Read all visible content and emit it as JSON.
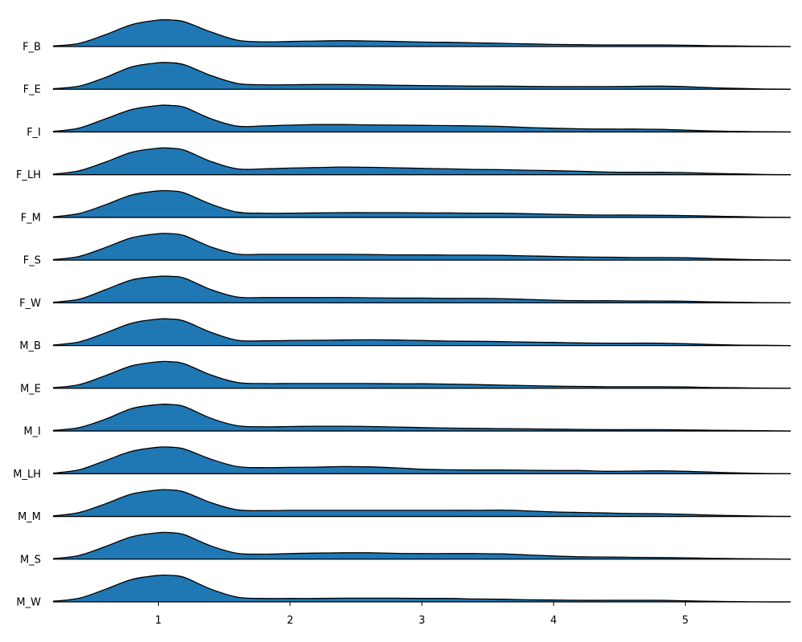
{
  "chart_data": {
    "type": "area",
    "title": "",
    "xlabel": "",
    "ylabel": "",
    "xlim": [
      0.2,
      5.8
    ],
    "xticks": [
      "1",
      "2",
      "3",
      "4",
      "5"
    ],
    "xtick_values": [
      1,
      2,
      3,
      4,
      5
    ],
    "grid": false,
    "legend": "none",
    "fill_color": "#1f77b4",
    "line_color": "#000000",
    "x": [
      0.2,
      0.4,
      0.6,
      0.8,
      1.0,
      1.1,
      1.2,
      1.4,
      1.6,
      1.8,
      2.0,
      2.2,
      2.4,
      2.6,
      2.8,
      3.0,
      3.2,
      3.4,
      3.6,
      3.8,
      4.0,
      4.2,
      4.4,
      4.6,
      4.8,
      5.0,
      5.2,
      5.4,
      5.6,
      5.8
    ],
    "series": [
      {
        "name": "F_B",
        "values": [
          0.02,
          0.12,
          0.45,
          0.83,
          1.0,
          1.0,
          0.93,
          0.55,
          0.24,
          0.18,
          0.19,
          0.21,
          0.22,
          0.21,
          0.19,
          0.17,
          0.16,
          0.14,
          0.12,
          0.1,
          0.08,
          0.07,
          0.06,
          0.06,
          0.06,
          0.05,
          0.03,
          0.02,
          0.01,
          0.0
        ]
      },
      {
        "name": "F_E",
        "values": [
          0.02,
          0.12,
          0.45,
          0.85,
          1.0,
          1.0,
          0.92,
          0.52,
          0.22,
          0.17,
          0.17,
          0.18,
          0.18,
          0.17,
          0.15,
          0.14,
          0.13,
          0.12,
          0.12,
          0.11,
          0.1,
          0.1,
          0.1,
          0.11,
          0.12,
          0.1,
          0.06,
          0.03,
          0.01,
          0.0
        ]
      },
      {
        "name": "F_I",
        "values": [
          0.02,
          0.15,
          0.5,
          0.85,
          1.0,
          1.0,
          0.93,
          0.5,
          0.22,
          0.23,
          0.26,
          0.28,
          0.28,
          0.27,
          0.26,
          0.25,
          0.24,
          0.23,
          0.21,
          0.17,
          0.14,
          0.12,
          0.11,
          0.11,
          0.1,
          0.07,
          0.04,
          0.02,
          0.01,
          0.0
        ]
      },
      {
        "name": "F_LH",
        "values": [
          0.02,
          0.15,
          0.48,
          0.85,
          1.0,
          1.0,
          0.92,
          0.5,
          0.22,
          0.22,
          0.25,
          0.27,
          0.29,
          0.28,
          0.26,
          0.24,
          0.22,
          0.2,
          0.19,
          0.17,
          0.15,
          0.13,
          0.1,
          0.09,
          0.09,
          0.08,
          0.05,
          0.03,
          0.01,
          0.0
        ]
      },
      {
        "name": "F_M",
        "values": [
          0.02,
          0.15,
          0.48,
          0.85,
          1.0,
          1.0,
          0.92,
          0.5,
          0.2,
          0.16,
          0.16,
          0.17,
          0.18,
          0.18,
          0.18,
          0.17,
          0.17,
          0.16,
          0.16,
          0.14,
          0.12,
          0.1,
          0.09,
          0.09,
          0.08,
          0.07,
          0.05,
          0.03,
          0.01,
          0.0
        ]
      },
      {
        "name": "F_S",
        "values": [
          0.02,
          0.14,
          0.48,
          0.85,
          1.0,
          1.0,
          0.92,
          0.5,
          0.23,
          0.22,
          0.22,
          0.22,
          0.22,
          0.21,
          0.2,
          0.2,
          0.19,
          0.19,
          0.18,
          0.16,
          0.14,
          0.12,
          0.11,
          0.1,
          0.1,
          0.09,
          0.06,
          0.03,
          0.01,
          0.0
        ]
      },
      {
        "name": "F_W",
        "values": [
          0.02,
          0.14,
          0.5,
          0.87,
          1.0,
          1.0,
          0.93,
          0.5,
          0.22,
          0.2,
          0.2,
          0.2,
          0.2,
          0.19,
          0.18,
          0.18,
          0.17,
          0.17,
          0.16,
          0.13,
          0.1,
          0.08,
          0.08,
          0.07,
          0.07,
          0.06,
          0.04,
          0.02,
          0.01,
          0.0
        ]
      },
      {
        "name": "M_B",
        "values": [
          0.02,
          0.14,
          0.48,
          0.85,
          1.0,
          1.0,
          0.92,
          0.5,
          0.2,
          0.18,
          0.19,
          0.2,
          0.21,
          0.22,
          0.21,
          0.19,
          0.17,
          0.16,
          0.15,
          0.13,
          0.12,
          0.1,
          0.09,
          0.09,
          0.09,
          0.07,
          0.04,
          0.02,
          0.01,
          0.0
        ]
      },
      {
        "name": "M_E",
        "values": [
          0.02,
          0.14,
          0.48,
          0.85,
          1.0,
          1.0,
          0.92,
          0.5,
          0.22,
          0.18,
          0.18,
          0.18,
          0.18,
          0.18,
          0.17,
          0.17,
          0.16,
          0.14,
          0.12,
          0.1,
          0.08,
          0.07,
          0.06,
          0.06,
          0.06,
          0.05,
          0.03,
          0.02,
          0.01,
          0.0
        ]
      },
      {
        "name": "M_I",
        "values": [
          0.02,
          0.13,
          0.45,
          0.85,
          1.0,
          1.0,
          0.92,
          0.48,
          0.2,
          0.16,
          0.17,
          0.18,
          0.18,
          0.17,
          0.15,
          0.13,
          0.11,
          0.1,
          0.09,
          0.08,
          0.07,
          0.06,
          0.05,
          0.05,
          0.05,
          0.04,
          0.03,
          0.02,
          0.01,
          0.0
        ]
      },
      {
        "name": "M_LH",
        "values": [
          0.02,
          0.15,
          0.5,
          0.85,
          1.0,
          1.0,
          0.93,
          0.55,
          0.27,
          0.23,
          0.24,
          0.25,
          0.27,
          0.26,
          0.22,
          0.17,
          0.15,
          0.14,
          0.14,
          0.13,
          0.12,
          0.12,
          0.09,
          0.1,
          0.11,
          0.09,
          0.06,
          0.03,
          0.01,
          0.0
        ]
      },
      {
        "name": "M_M",
        "values": [
          0.02,
          0.15,
          0.48,
          0.85,
          1.0,
          1.0,
          0.92,
          0.52,
          0.25,
          0.22,
          0.23,
          0.23,
          0.23,
          0.23,
          0.23,
          0.23,
          0.23,
          0.23,
          0.24,
          0.21,
          0.17,
          0.15,
          0.13,
          0.11,
          0.1,
          0.08,
          0.05,
          0.03,
          0.01,
          0.0
        ]
      },
      {
        "name": "M_S",
        "values": [
          0.02,
          0.14,
          0.48,
          0.85,
          1.0,
          1.0,
          0.92,
          0.5,
          0.22,
          0.19,
          0.21,
          0.23,
          0.24,
          0.24,
          0.22,
          0.21,
          0.21,
          0.21,
          0.2,
          0.16,
          0.12,
          0.09,
          0.08,
          0.07,
          0.06,
          0.05,
          0.03,
          0.02,
          0.01,
          0.0
        ]
      },
      {
        "name": "M_W",
        "values": [
          0.02,
          0.14,
          0.48,
          0.85,
          1.0,
          1.0,
          0.92,
          0.48,
          0.18,
          0.13,
          0.13,
          0.13,
          0.14,
          0.14,
          0.14,
          0.13,
          0.13,
          0.11,
          0.1,
          0.08,
          0.07,
          0.06,
          0.06,
          0.06,
          0.06,
          0.04,
          0.02,
          0.01,
          0.0,
          0.0
        ]
      }
    ]
  }
}
